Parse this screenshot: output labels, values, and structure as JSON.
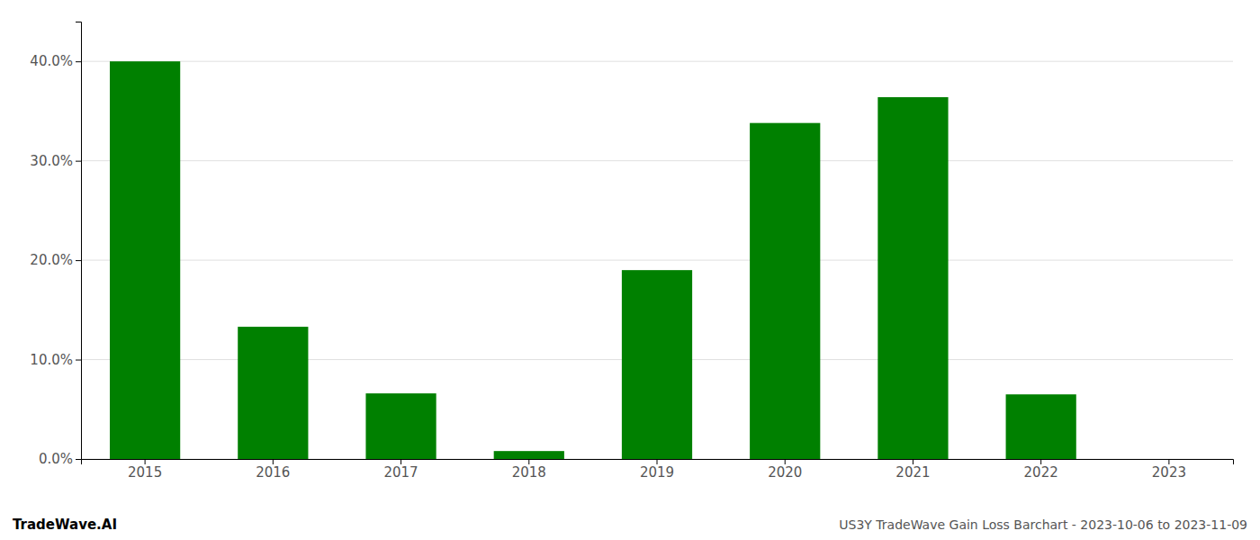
{
  "chart_data": {
    "type": "bar",
    "categories": [
      "2015",
      "2016",
      "2017",
      "2018",
      "2019",
      "2020",
      "2021",
      "2022",
      "2023"
    ],
    "values": [
      0.4,
      0.133,
      0.066,
      0.008,
      0.19,
      0.338,
      0.364,
      0.065,
      0.0
    ],
    "color": "#008000",
    "ylim": [
      0,
      0.44
    ],
    "yticks": [
      {
        "value": 0.0,
        "label": "0.0%"
      },
      {
        "value": 0.1,
        "label": "10.0%"
      },
      {
        "value": 0.2,
        "label": "20.0%"
      },
      {
        "value": 0.3,
        "label": "30.0%"
      },
      {
        "value": 0.4,
        "label": "40.0%"
      }
    ],
    "grid": true,
    "annotations": [
      "TradeWave.AI",
      "US3Y TradeWave Gain Loss Barchart - 2023-10-06 to 2023-11-09"
    ]
  }
}
